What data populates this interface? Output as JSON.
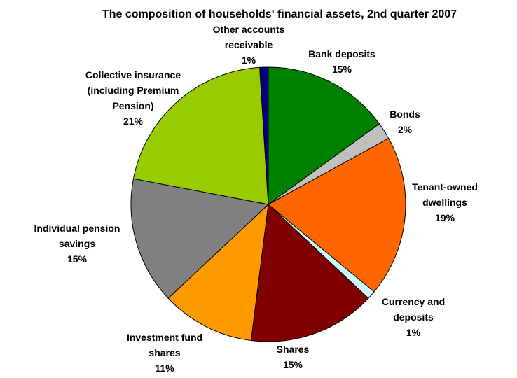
{
  "chart_data": {
    "type": "pie",
    "title": "The composition of households' financial assets, 2nd quarter 2007",
    "categories": [
      "Bank deposits",
      "Bonds",
      "Tenant-owned dwellings",
      "Currency and deposits",
      "Shares",
      "Investment fund shares",
      "Individual pension savings",
      "Collective insurance (including Premium Pension)",
      "Other accounts receivable"
    ],
    "values": [
      15,
      2,
      19,
      1,
      15,
      11,
      15,
      21,
      1
    ],
    "value_labels": [
      "15%",
      "2%",
      "19%",
      "1%",
      "15%",
      "11%",
      "15%",
      "21%",
      "1%"
    ],
    "colors": [
      "#008000",
      "#c0c0c0",
      "#ff6600",
      "#ccffff",
      "#800000",
      "#ff9900",
      "#808080",
      "#99cc00",
      "#000080"
    ]
  }
}
